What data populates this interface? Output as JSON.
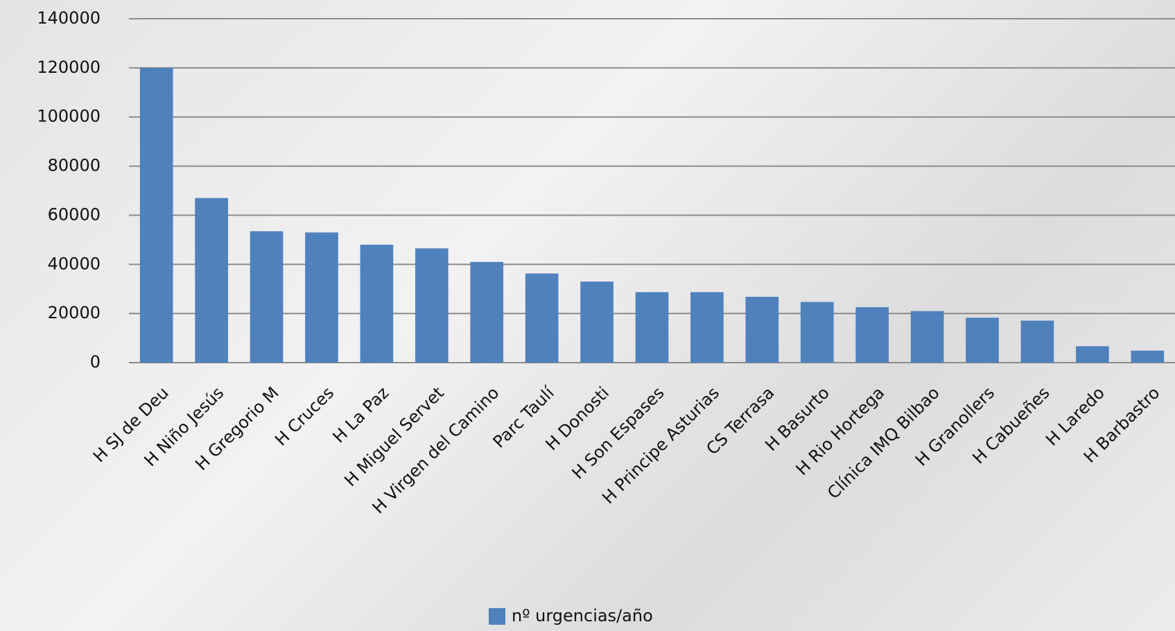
{
  "chart_data": {
    "type": "bar",
    "categories": [
      "H SJ de Deu",
      "H Niño Jesús",
      "H Gregorio M",
      "H Cruces",
      "H La Paz",
      "H Miguel Servet",
      "H Virgen del Camino",
      "Parc Taulí",
      "H Donosti",
      "H Son Espases",
      "H Principe Asturias",
      "CS Terrasa",
      "H Basurto",
      "H Rio Hortega",
      "Clínica IMQ Bilbao",
      "H Granollers",
      "H Cabueñes",
      "H Laredo",
      "H Barbastro"
    ],
    "series": [
      {
        "name": "nº urgencias/año",
        "color": "#4f81bd",
        "values": [
          120000,
          67000,
          53500,
          53000,
          48000,
          46500,
          41000,
          36300,
          33000,
          28700,
          28700,
          26800,
          24700,
          22600,
          21000,
          18300,
          17100,
          6700,
          4900
        ]
      }
    ],
    "ylim": [
      0,
      140000
    ],
    "yticks": [
      0,
      20000,
      40000,
      60000,
      80000,
      100000,
      120000,
      140000
    ],
    "grid": true,
    "legend": "bottom"
  }
}
